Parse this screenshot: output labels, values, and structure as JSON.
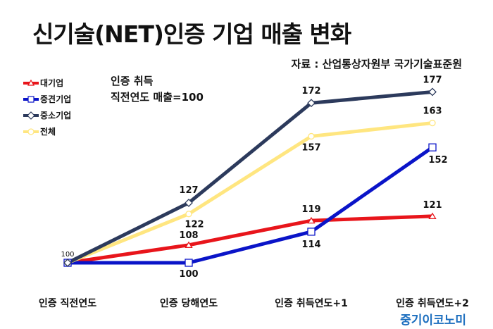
{
  "title": "신기술(NET)인증 기업 매출 변화",
  "source": "자료 : 산업통상자원부 국가기술표준원",
  "note": [
    "인증 취득",
    "직전연도 매출=100"
  ],
  "brand": "중기이코노미",
  "colors": {
    "large": "#e8151b",
    "mid": "#0a14c8",
    "sme": "#2c3a5c",
    "total": "#ffe680"
  },
  "chart_data": {
    "type": "line",
    "categories": [
      "인증 직전연도",
      "인증 당해연도",
      "인증 취득연도+1",
      "인증 취득연도+2"
    ],
    "series": [
      {
        "name": "대기업",
        "values": [
          100,
          108,
          119,
          121
        ],
        "marker": "triangle",
        "color": "#e8151b",
        "labels": [
          null,
          "108",
          "119",
          "121"
        ]
      },
      {
        "name": "중견기업",
        "values": [
          100,
          100,
          114,
          152
        ],
        "marker": "square",
        "color": "#0a14c8",
        "labels": [
          null,
          "100",
          "114",
          "152"
        ]
      },
      {
        "name": "중소기업",
        "values": [
          100,
          127,
          172,
          177
        ],
        "marker": "diamond",
        "color": "#2c3a5c",
        "labels": [
          null,
          "127",
          "172",
          "177"
        ]
      },
      {
        "name": "전체",
        "values": [
          100,
          122,
          157,
          163
        ],
        "marker": "circle",
        "color": "#ffe680",
        "labels": [
          null,
          "122",
          "157",
          "163"
        ]
      }
    ],
    "start_label": "100",
    "legend": "top-left",
    "grid": false
  }
}
